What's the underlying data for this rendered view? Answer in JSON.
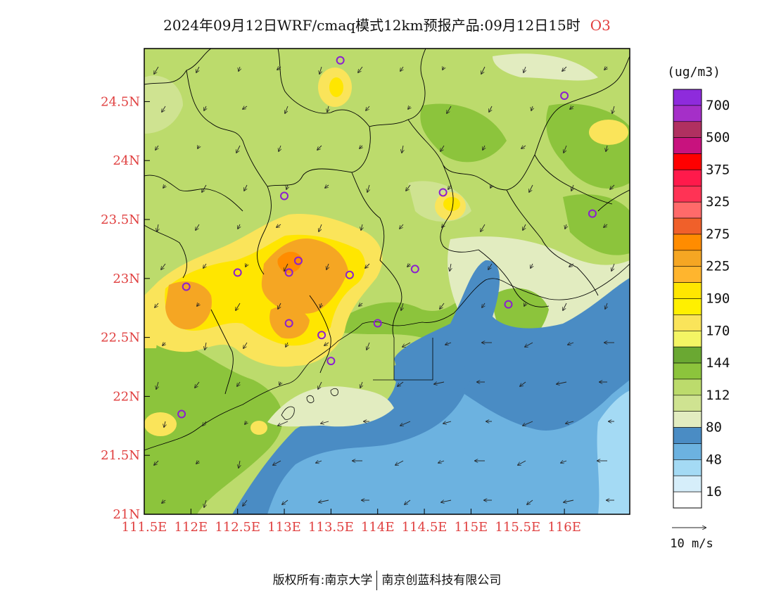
{
  "header": {
    "title": "2024年09月12日WRF/cmaq模式12km预报产品:09月12日15时",
    "species": "O3"
  },
  "map": {
    "lon_range": [
      111.5,
      116.7
    ],
    "lat_range": [
      21.0,
      24.95
    ],
    "lon_ticks": [
      "111.5E",
      "112E",
      "112.5E",
      "113E",
      "113.5E",
      "114E",
      "114.5E",
      "115E",
      "115.5E",
      "116E"
    ],
    "lat_ticks": [
      "21N",
      "21.5N",
      "22N",
      "22.5N",
      "23N",
      "23.5N",
      "24N",
      "24.5N"
    ],
    "tick_label_color": "#e04040"
  },
  "legend": {
    "unit": "(ug/m3)",
    "levels": [
      "700",
      "500",
      "375",
      "325",
      "275",
      "225",
      "190",
      "170",
      "144",
      "112",
      "80",
      "48",
      "16"
    ],
    "colors_top_to_bottom": [
      "#8e2bdc",
      "#a52fc8",
      "#b03060",
      "#c8127e",
      "#ff0000",
      "#ff1a4b",
      "#ff3355",
      "#ff6a6a",
      "#f0602a",
      "#ff8c00",
      "#f5a623",
      "#ffb52e",
      "#ffe600",
      "#fff000",
      "#fae45a",
      "#f4f564",
      "#6aa832",
      "#8cc43c",
      "#bcdb6c",
      "#cfe391",
      "#e2ecc0",
      "#4a8cc4",
      "#6cb2e0",
      "#a4daf4",
      "#d6eefa",
      "#ffffff"
    ],
    "wind_scale": "10 m/s"
  },
  "stations": [
    {
      "lon": 113.6,
      "lat": 24.85
    },
    {
      "lon": 116.0,
      "lat": 24.55
    },
    {
      "lon": 113.0,
      "lat": 23.7
    },
    {
      "lon": 114.7,
      "lat": 23.73
    },
    {
      "lon": 116.3,
      "lat": 23.55
    },
    {
      "lon": 112.5,
      "lat": 23.05
    },
    {
      "lon": 113.05,
      "lat": 23.05
    },
    {
      "lon": 113.15,
      "lat": 23.15
    },
    {
      "lon": 113.7,
      "lat": 23.03
    },
    {
      "lon": 114.4,
      "lat": 23.08
    },
    {
      "lon": 111.95,
      "lat": 22.93
    },
    {
      "lon": 115.4,
      "lat": 22.78
    },
    {
      "lon": 113.05,
      "lat": 22.62
    },
    {
      "lon": 114.0,
      "lat": 22.62
    },
    {
      "lon": 113.4,
      "lat": 22.52
    },
    {
      "lon": 113.5,
      "lat": 22.3
    },
    {
      "lon": 111.9,
      "lat": 21.85
    }
  ],
  "footer": {
    "copyright_left": "版权所有:南京大学",
    "copyright_right": "南京创蓝科技有限公司"
  }
}
